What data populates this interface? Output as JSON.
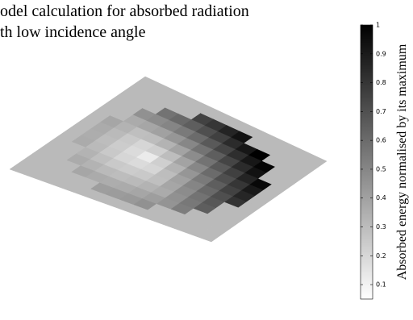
{
  "chart_data": {
    "type": "surface",
    "title_lines": [
      "odel calculation for absorbed radiation",
      "th low incidence angle"
    ],
    "z": [
      [
        0.27,
        0.27,
        0.27,
        0.27,
        0.27,
        0.27,
        0.27,
        0.27,
        0.27,
        0.27,
        0.27,
        0.27,
        0.27,
        0.27
      ],
      [
        0.27,
        0.27,
        0.27,
        0.27,
        0.27,
        0.33,
        0.32,
        0.33,
        0.35,
        0.27,
        0.27,
        0.27,
        0.27,
        0.27
      ],
      [
        0.27,
        0.27,
        0.27,
        0.33,
        0.3,
        0.27,
        0.26,
        0.27,
        0.3,
        0.33,
        0.43,
        0.27,
        0.27,
        0.27
      ],
      [
        0.27,
        0.27,
        0.35,
        0.3,
        0.25,
        0.21,
        0.2,
        0.21,
        0.25,
        0.35,
        0.45,
        0.55,
        0.27,
        0.27
      ],
      [
        0.27,
        0.27,
        0.33,
        0.27,
        0.21,
        0.16,
        0.14,
        0.16,
        0.26,
        0.37,
        0.48,
        0.59,
        0.27,
        0.27
      ],
      [
        0.27,
        0.38,
        0.32,
        0.26,
        0.2,
        0.14,
        0.08,
        0.19,
        0.3,
        0.41,
        0.52,
        0.63,
        0.74,
        0.27
      ],
      [
        0.27,
        0.39,
        0.33,
        0.27,
        0.21,
        0.16,
        0.19,
        0.26,
        0.36,
        0.47,
        0.58,
        0.69,
        0.79,
        0.27
      ],
      [
        0.27,
        0.4,
        0.35,
        0.3,
        0.25,
        0.26,
        0.3,
        0.36,
        0.45,
        0.55,
        0.65,
        0.75,
        0.86,
        0.27
      ],
      [
        0.27,
        0.43,
        0.38,
        0.33,
        0.35,
        0.37,
        0.41,
        0.47,
        0.55,
        0.63,
        0.73,
        0.83,
        0.93,
        0.27
      ],
      [
        0.27,
        0.27,
        0.42,
        0.43,
        0.45,
        0.48,
        0.52,
        0.58,
        0.65,
        0.73,
        0.82,
        0.91,
        0.27,
        0.27
      ],
      [
        0.27,
        0.27,
        0.51,
        0.53,
        0.55,
        0.59,
        0.63,
        0.69,
        0.75,
        0.83,
        0.91,
        1.0,
        0.27,
        0.27
      ],
      [
        0.27,
        0.27,
        0.27,
        0.63,
        0.66,
        0.69,
        0.74,
        0.79,
        0.86,
        0.93,
        0.98,
        0.27,
        0.27,
        0.27
      ],
      [
        0.27,
        0.27,
        0.27,
        0.27,
        0.27,
        0.8,
        0.85,
        0.9,
        0.97,
        0.27,
        0.27,
        0.27,
        0.27,
        0.27
      ],
      [
        0.27,
        0.27,
        0.27,
        0.27,
        0.27,
        0.27,
        0.27,
        0.27,
        0.27,
        0.27,
        0.27,
        0.27,
        0.27,
        0.27
      ]
    ],
    "colormap": "gray_reversed",
    "colorbar": {
      "label": "Absorbed energy normalised by its maximum",
      "lim": [
        0.05,
        1
      ],
      "ticks": [
        0.1,
        0.2,
        0.3,
        0.4,
        0.5,
        0.6,
        0.7,
        0.8,
        0.9,
        1
      ]
    }
  }
}
